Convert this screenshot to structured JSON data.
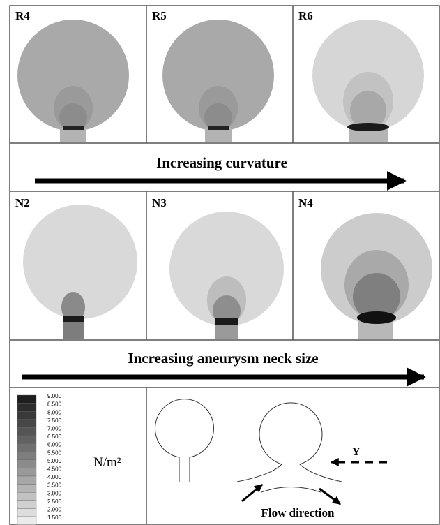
{
  "panels_row1": [
    "R4",
    "R5",
    "R6"
  ],
  "caption_row1": "Increasing curvature",
  "panels_row2": [
    "N2",
    "N3",
    "N4"
  ],
  "caption_row2": "Increasing aneurysm neck size",
  "colorbar": {
    "ticks": [
      "9.000",
      "8.500",
      "8.000",
      "7.500",
      "7.000",
      "6.500",
      "6.000",
      "5.500",
      "5.000",
      "4.500",
      "4.000",
      "3.500",
      "3.000",
      "2.500",
      "2.000",
      "1.500"
    ],
    "unit": "N/m²"
  },
  "schematic": {
    "view_label": "Y",
    "flow_label": "Flow direction"
  }
}
